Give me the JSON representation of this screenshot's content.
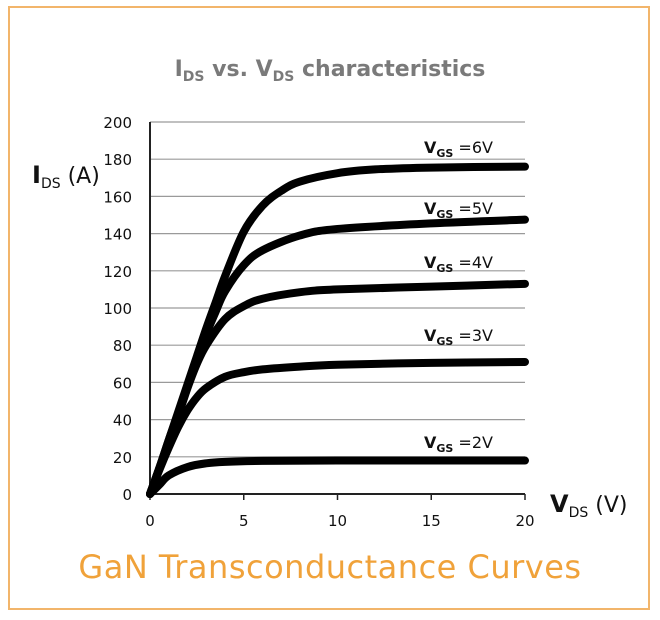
{
  "chart_data": {
    "type": "line",
    "title": {
      "main": "I",
      "sub": "DS",
      "mid": " vs. V",
      "sub2": "DS",
      "tail": " characteristics"
    },
    "ylabel": {
      "main": "I",
      "sub": "DS",
      "unit": " (A)"
    },
    "xlabel": {
      "main": "V",
      "sub": "DS",
      "unit": " (V)"
    },
    "xlim": [
      0,
      20
    ],
    "ylim": [
      0,
      200
    ],
    "xticks": [
      0,
      5,
      10,
      15,
      20
    ],
    "yticks": [
      0,
      20,
      40,
      60,
      80,
      100,
      120,
      140,
      160,
      180,
      200
    ],
    "grid": "horizontal",
    "series": [
      {
        "name": "2V",
        "label_prefix": "V",
        "label_sub": "GS",
        "label_suffix": " =2V",
        "x": [
          0,
          0.5,
          1,
          2,
          3,
          4,
          6,
          10,
          15,
          20
        ],
        "y": [
          0,
          5,
          10,
          14.5,
          16.5,
          17.3,
          17.8,
          18,
          18,
          18
        ]
      },
      {
        "name": "3V",
        "label_prefix": "V",
        "label_sub": "GS",
        "label_suffix": " =3V",
        "x": [
          0,
          0.5,
          1,
          1.5,
          2,
          2.5,
          3,
          4,
          5,
          6,
          8,
          10,
          15,
          20
        ],
        "y": [
          0,
          13,
          25,
          36,
          45,
          52,
          57,
          63,
          65.5,
          67,
          68.5,
          69.5,
          70.5,
          71
        ]
      },
      {
        "name": "4V",
        "label_prefix": "V",
        "label_sub": "GS",
        "label_suffix": " =4V",
        "x": [
          0,
          0.5,
          1,
          1.5,
          2,
          2.5,
          3,
          4,
          5,
          6,
          8,
          10,
          15,
          20
        ],
        "y": [
          0,
          14,
          28,
          42,
          57,
          70,
          80,
          94,
          101,
          105,
          108.5,
          110,
          111.5,
          113
        ]
      },
      {
        "name": "5V",
        "label_prefix": "V",
        "label_sub": "GS",
        "label_suffix": " =5V",
        "x": [
          0,
          0.5,
          1,
          1.5,
          2,
          2.5,
          3,
          3.5,
          4,
          5,
          6,
          8,
          10,
          15,
          20
        ],
        "y": [
          0,
          14,
          29,
          43,
          58,
          72,
          86,
          98,
          109,
          123,
          131,
          139,
          142.5,
          145.5,
          147.5
        ]
      },
      {
        "name": "6V",
        "label_prefix": "V",
        "label_sub": "GS",
        "label_suffix": " =6V",
        "x": [
          0,
          0.5,
          1,
          1.5,
          2,
          2.5,
          3,
          3.5,
          4,
          5,
          6,
          7,
          8,
          10,
          12,
          15,
          20
        ],
        "y": [
          0,
          14,
          29,
          44,
          59,
          74,
          89,
          103,
          117,
          141,
          155,
          163,
          168,
          172.5,
          174.5,
          175.5,
          176
        ]
      }
    ]
  },
  "caption": "GaN Transconductance Curves"
}
